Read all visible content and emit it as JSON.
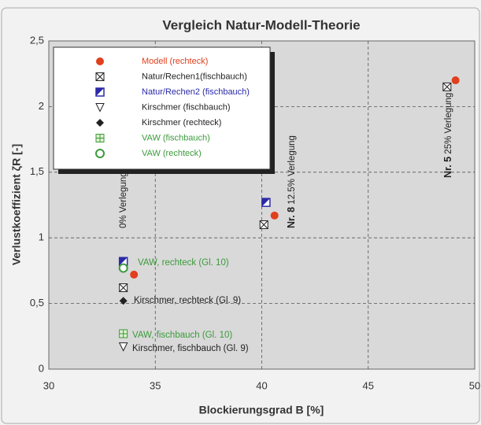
{
  "chart_data": {
    "type": "scatter",
    "title": "Vergleich Natur-Modell-Theorie",
    "x_label": "Blockierungsgrad B [%]",
    "y_label": "Verlustkoeffizient ζR [-]",
    "xlim": [
      30,
      50
    ],
    "xticks": [
      30,
      35,
      40,
      45,
      50
    ],
    "ylim": [
      0,
      2.5
    ],
    "yticks": [
      0,
      {
        "value": 0.5,
        "label": "0,5"
      },
      1,
      {
        "value": 1.5,
        "label": "1,5"
      },
      2,
      {
        "value": 2.5,
        "label": "2,5"
      }
    ],
    "grid": true,
    "legend": "upper left",
    "series": [
      {
        "name": "Modell (rechteck)",
        "color": "#e0401e",
        "marker": "circle",
        "x": [
          34.0,
          40.6,
          49.1
        ],
        "values": [
          0.72,
          1.17,
          2.2
        ]
      },
      {
        "name": "Natur/Rechen1(fischbauch)",
        "color": "#222222",
        "marker": "boxx",
        "x": [
          33.5,
          40.1,
          48.7
        ],
        "values": [
          0.62,
          1.1,
          2.15
        ]
      },
      {
        "name": "Natur/Rechen2 (fischbauch)",
        "color": "#2a2aa8",
        "marker": "halfsquare",
        "x": [
          33.5,
          40.2
        ],
        "values": [
          0.82,
          1.27
        ]
      },
      {
        "name": "Kirschmer (fischbauch)",
        "color": "#222222",
        "marker": "triangle",
        "x": [
          33.5
        ],
        "values": [
          0.17
        ]
      },
      {
        "name": "Kirschmer (rechteck)",
        "color": "#222222",
        "marker": "diamond",
        "x": [
          33.5
        ],
        "values": [
          0.52
        ]
      },
      {
        "name": "VAW (fischbauch)",
        "color": "#3c9a3c",
        "marker": "gridsquare",
        "x": [
          33.5
        ],
        "values": [
          0.27
        ]
      },
      {
        "name": "VAW (rechteck)",
        "color": "#3c9a3c",
        "marker": "ringcircle",
        "x": [
          33.5
        ],
        "values": [
          0.77
        ]
      }
    ],
    "annotations": [
      {
        "text": "VAW, rechteck (Gl. 10)",
        "color": "#3c9a3c"
      },
      {
        "text": "Kirschmer, rechteck (Gl. 9)",
        "color": "#222222"
      },
      {
        "text": "VAW, fischbauch (Gl. 10)",
        "color": "#3c9a3c"
      },
      {
        "text": "Kirschmer, fischbauch (Gl. 9)",
        "color": "#222222"
      },
      {
        "text": "0% Verlegung",
        "color": "#222222"
      },
      {
        "bold": "Nr. 8",
        "text": "12.5% Verlegung",
        "color": "#222222"
      },
      {
        "bold": "Nr. 5",
        "text": "25% Verlegung",
        "color": "#222222"
      }
    ]
  }
}
